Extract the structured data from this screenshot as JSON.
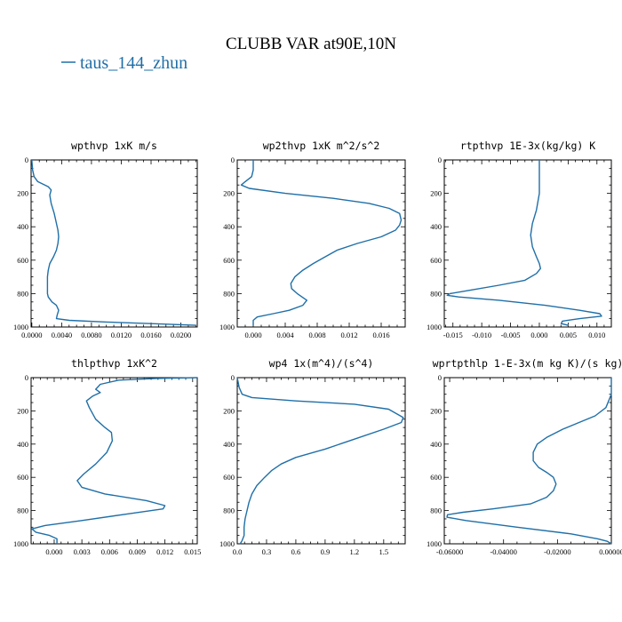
{
  "figure": {
    "title": "CLUBB VAR at90E,10N",
    "legend": {
      "label": "taus_144_zhun",
      "color": "#1f6fa8"
    }
  },
  "chart_data": [
    {
      "type": "line",
      "title": "wpthvp   1xK m/s",
      "xlim": [
        -0.0001,
        0.0222
      ],
      "ylim": [
        1000,
        0
      ],
      "xticks": [
        0.0,
        0.004,
        0.008,
        0.012,
        0.016,
        0.02
      ],
      "xtick_labels": [
        "0.0000",
        "0.0040",
        "0.0080",
        "0.0120",
        "0.0160",
        "0.0200"
      ],
      "yticks": [
        0,
        200,
        400,
        600,
        800,
        1000
      ],
      "series": [
        {
          "x": [
            0.0,
            0.0001,
            0.0003,
            0.0008,
            0.0015,
            0.0022,
            0.0026,
            0.0024,
            0.0026,
            0.003,
            0.0033,
            0.0035,
            0.0036,
            0.0035,
            0.0033,
            0.0029,
            0.0024,
            0.0022,
            0.0021,
            0.0021,
            0.0021,
            0.0021,
            0.0022,
            0.0027,
            0.0033,
            0.0036,
            0.0034,
            0.0033,
            0.005,
            0.01,
            0.016,
            0.022
          ],
          "y": [
            0,
            60,
            100,
            130,
            145,
            160,
            180,
            210,
            260,
            320,
            380,
            420,
            460,
            500,
            540,
            580,
            620,
            660,
            700,
            740,
            780,
            800,
            820,
            850,
            870,
            900,
            930,
            950,
            960,
            970,
            980,
            990
          ]
        }
      ]
    },
    {
      "type": "line",
      "title": "wp2thvp   1xK m^2/s^2",
      "xlim": [
        -0.002,
        0.019
      ],
      "ylim": [
        1000,
        0
      ],
      "xticks": [
        0.0,
        0.004,
        0.008,
        0.012,
        0.016
      ],
      "xtick_labels": [
        "0.000",
        "0.004",
        "0.008",
        "0.012",
        "0.016"
      ],
      "yticks": [
        0,
        200,
        400,
        600,
        800,
        1000
      ],
      "series": [
        {
          "x": [
            0.0,
            0.0,
            -0.0002,
            -0.001,
            -0.0015,
            -0.0005,
            0.004,
            0.01,
            0.0145,
            0.017,
            0.0183,
            0.0185,
            0.0183,
            0.0178,
            0.016,
            0.013,
            0.0105,
            0.009,
            0.0075,
            0.0062,
            0.0052,
            0.0047,
            0.0048,
            0.0055,
            0.0067,
            0.0062,
            0.0045,
            0.0025,
            0.0005,
            0.0,
            0.0
          ],
          "y": [
            0,
            60,
            100,
            130,
            150,
            170,
            200,
            230,
            260,
            290,
            320,
            360,
            390,
            420,
            460,
            500,
            540,
            580,
            620,
            660,
            700,
            740,
            770,
            800,
            840,
            870,
            900,
            920,
            940,
            960,
            990
          ]
        }
      ]
    },
    {
      "type": "line",
      "title": "rtpthvp   1E-3x(kg/kg) K",
      "xlim": [
        -0.0165,
        0.0125
      ],
      "ylim": [
        1000,
        0
      ],
      "xticks": [
        -0.015,
        -0.01,
        -0.005,
        0.0,
        0.005,
        0.01
      ],
      "xtick_labels": [
        "-0.015",
        "-0.010",
        "-0.005",
        "0.000",
        "0.005",
        "0.010"
      ],
      "yticks": [
        0,
        200,
        400,
        600,
        800,
        1000
      ],
      "series": [
        {
          "x": [
            0.0,
            0.0,
            -0.0005,
            -0.0012,
            -0.0015,
            -0.0012,
            -0.0005,
            0.0,
            0.0002,
            -0.0005,
            -0.0025,
            -0.007,
            -0.012,
            -0.0155,
            -0.016,
            -0.014,
            -0.007,
            0.001,
            0.007,
            0.0105,
            0.0108,
            0.007,
            0.004,
            0.0038,
            0.005
          ],
          "y": [
            0,
            200,
            300,
            380,
            450,
            520,
            580,
            620,
            650,
            680,
            720,
            750,
            780,
            800,
            810,
            820,
            840,
            870,
            900,
            920,
            935,
            950,
            965,
            980,
            990
          ]
        }
      ]
    },
    {
      "type": "line",
      "title": "thlpthvp   1xK^2",
      "xlim": [
        -0.0025,
        0.0155
      ],
      "ylim": [
        1000,
        0
      ],
      "xticks": [
        0.0,
        0.003,
        0.006,
        0.009,
        0.012,
        0.015
      ],
      "xtick_labels": [
        "0.000",
        "0.003",
        "0.006",
        "0.009",
        "0.012",
        "0.015"
      ],
      "yticks": [
        0,
        200,
        400,
        600,
        800,
        1000
      ],
      "series": [
        {
          "x": [
            0.0155,
            0.011,
            0.007,
            0.005,
            0.0045,
            0.005,
            0.0042,
            0.0035,
            0.0038,
            0.0045,
            0.0055,
            0.0062,
            0.0063,
            0.0057,
            0.0045,
            0.0032,
            0.0025,
            0.003,
            0.0055,
            0.01,
            0.012,
            0.0118,
            0.008,
            0.003,
            -0.001,
            -0.0024,
            -0.002,
            -0.0005,
            0.0003,
            0.0003
          ],
          "y": [
            0,
            5,
            15,
            40,
            70,
            90,
            110,
            140,
            180,
            250,
            300,
            330,
            380,
            450,
            520,
            580,
            620,
            660,
            700,
            740,
            770,
            790,
            820,
            860,
            890,
            910,
            930,
            950,
            970,
            1000
          ]
        }
      ]
    },
    {
      "type": "line",
      "title": "wp4   1x(m^4)/(s^4)",
      "xlim": [
        0.0,
        1.72
      ],
      "ylim": [
        1000,
        0
      ],
      "xticks": [
        0.0,
        0.3,
        0.6,
        0.9,
        1.2,
        1.5
      ],
      "xtick_labels": [
        "0.0",
        "0.3",
        "0.6",
        "0.9",
        "1.2",
        "1.5"
      ],
      "yticks": [
        0,
        200,
        400,
        600,
        800,
        1000
      ],
      "series": [
        {
          "x": [
            0.0,
            0.02,
            0.05,
            0.15,
            0.6,
            1.2,
            1.55,
            1.7,
            1.68,
            1.5,
            1.2,
            0.9,
            0.6,
            0.45,
            0.35,
            0.28,
            0.2,
            0.15,
            0.12,
            0.1,
            0.08,
            0.07,
            0.07,
            0.05,
            0.03
          ],
          "y": [
            0,
            60,
            100,
            120,
            140,
            160,
            190,
            240,
            270,
            310,
            370,
            430,
            480,
            520,
            560,
            600,
            650,
            700,
            750,
            800,
            850,
            900,
            950,
            980,
            1000
          ]
        }
      ]
    },
    {
      "type": "line",
      "title": "wprtpthlp   1-E-3x(m kg K)/(s kg)",
      "xlim": [
        -0.062,
        0.0
      ],
      "ylim": [
        1000,
        0
      ],
      "xticks": [
        -0.06,
        -0.04,
        -0.02,
        0.0
      ],
      "xtick_labels": [
        "-0.06000",
        "-0.04000",
        "-0.02000",
        "0.00000"
      ],
      "yticks": [
        0,
        200,
        400,
        600,
        800,
        1000
      ],
      "series": [
        {
          "x": [
            0.0,
            0.0,
            -0.002,
            -0.006,
            -0.012,
            -0.018,
            -0.024,
            -0.0275,
            -0.029,
            -0.029,
            -0.027,
            -0.024,
            -0.0215,
            -0.0205,
            -0.0215,
            -0.024,
            -0.03,
            -0.044,
            -0.055,
            -0.0608,
            -0.061,
            -0.054,
            -0.035,
            -0.015,
            -0.005,
            -0.0015,
            0.0
          ],
          "y": [
            0,
            100,
            180,
            230,
            270,
            310,
            360,
            400,
            450,
            500,
            540,
            570,
            600,
            640,
            680,
            720,
            760,
            790,
            810,
            825,
            840,
            860,
            900,
            940,
            970,
            985,
            1000
          ]
        }
      ]
    }
  ]
}
